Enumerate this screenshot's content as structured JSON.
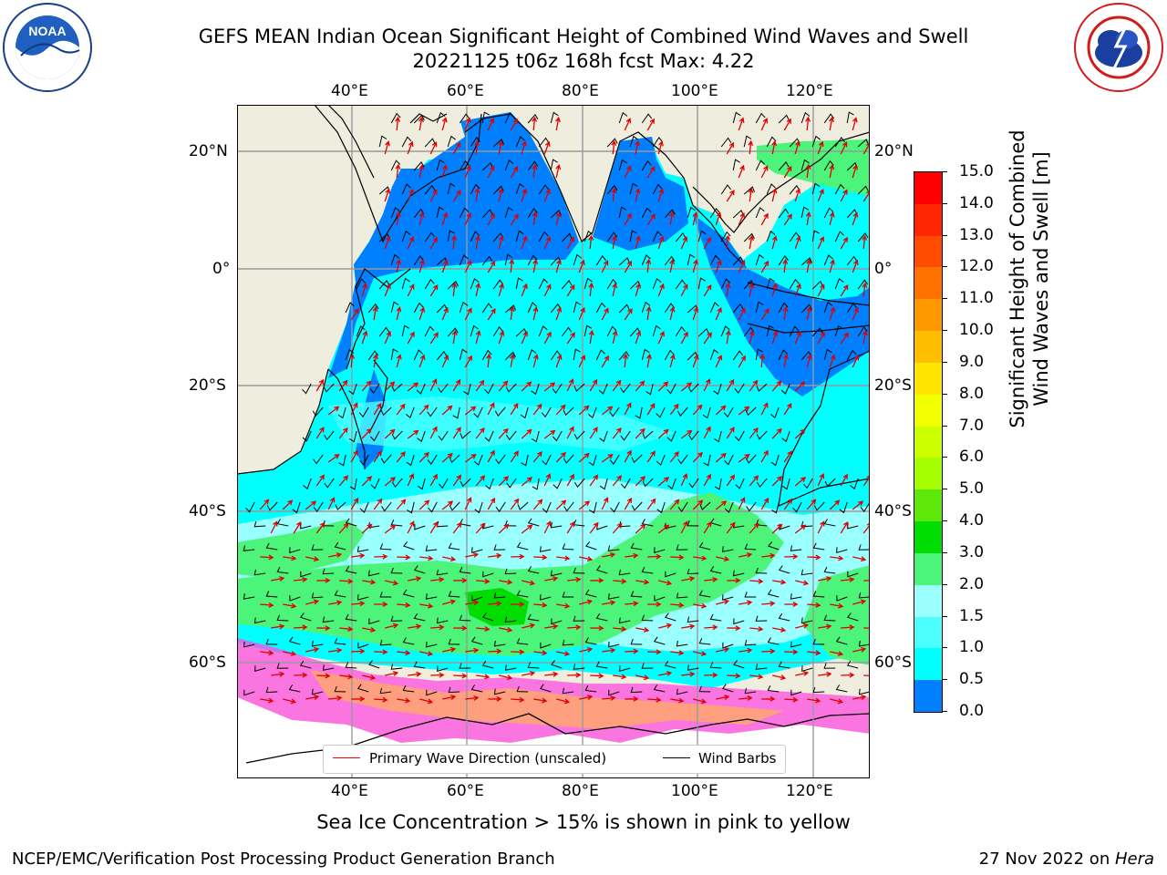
{
  "title": {
    "line1": "GEFS MEAN Indian Ocean Significant Height of Combined Wind Waves and Swell",
    "line2": "20221125 t06z 168h fcst   Max: 4.22"
  },
  "logos": {
    "left": {
      "name": "noaa-logo",
      "text": "NOAA",
      "ring_text": "NATIONAL OCEANIC AND ATMOSPHERIC ADMINISTRATION · U.S. DEPARTMENT OF COMMERCE"
    },
    "right": {
      "name": "nws-logo",
      "ring_text": "NATIONAL WEATHER SERVICE"
    }
  },
  "map": {
    "lon_labels": [
      "40°E",
      "60°E",
      "80°E",
      "100°E",
      "120°E"
    ],
    "lat_labels_left": [
      "20°N",
      "0°",
      "20°S",
      "40°S",
      "60°S"
    ],
    "lat_labels_right": [
      "20°N",
      "0°",
      "20°S",
      "40°S",
      "60°S"
    ]
  },
  "legend": {
    "wave_label": "Primary Wave Direction (unscaled)",
    "wind_label": "Wind Barbs",
    "wave_color": "#ff0000",
    "wind_color": "#000000"
  },
  "colorbar": {
    "label_line1": "Significant Height of Combined",
    "label_line2": "Wind Waves and Swell [m]",
    "ticks": [
      "15.0",
      "14.0",
      "13.0",
      "12.0",
      "11.0",
      "10.0",
      "9.0",
      "8.0",
      "7.0",
      "6.0",
      "5.0",
      "4.0",
      "3.0",
      "2.0",
      "1.5",
      "1.0",
      "0.5",
      "0.0"
    ],
    "colors": [
      "#ff0000",
      "#ff2600",
      "#ff4c00",
      "#ff7200",
      "#ff9900",
      "#ffbf00",
      "#ffe500",
      "#f2ff00",
      "#ccff00",
      "#a5ff00",
      "#5ee80a",
      "#00dd00",
      "#4cf57a",
      "#99ffff",
      "#4cffff",
      "#00ffff",
      "#0080ff",
      "#0000ff"
    ]
  },
  "ice_note": "Sea Ice Concentration > 15% is shown in pink to yellow",
  "footer": {
    "left": "NCEP/EMC/Verification Post Processing Product Generation Branch",
    "right_prefix": "27 Nov 2022 on ",
    "right_host": "Hera"
  }
}
